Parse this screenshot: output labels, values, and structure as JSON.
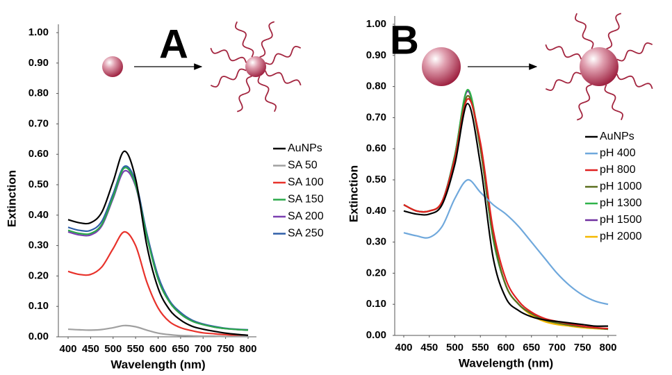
{
  "chart_data": [
    {
      "type": "line",
      "panel_label": "A",
      "xlabel": "Wavelength (nm)",
      "ylabel": "Extinction",
      "grid": false,
      "x": [
        400,
        425,
        450,
        475,
        500,
        525,
        550,
        575,
        600,
        625,
        650,
        675,
        700,
        725,
        750,
        775,
        800
      ],
      "xlim": [
        400,
        800
      ],
      "xticks": [
        400,
        450,
        500,
        550,
        600,
        650,
        700,
        750,
        800
      ],
      "ylim": [
        0,
        1
      ],
      "yticks": [
        {
          "value": 0,
          "label": "0.00"
        },
        {
          "value": 0.1,
          "label": "0.10"
        },
        {
          "value": 0.2,
          "label": "0.20"
        },
        {
          "value": 0.3,
          "label": "0.30"
        },
        {
          "value": 0.4,
          "label": "0.40"
        },
        {
          "value": 0.5,
          "label": "0.50"
        },
        {
          "value": 0.6,
          "label": "0.60"
        },
        {
          "value": 0.7,
          "label": "0.70"
        },
        {
          "value": 0.8,
          "label": "0.80"
        },
        {
          "value": 0.9,
          "label": "0.90"
        },
        {
          "value": 1,
          "label": "1.00"
        }
      ],
      "series": [
        {
          "name": "AuNPs",
          "color": "#000000",
          "values": [
            0.385,
            0.375,
            0.375,
            0.41,
            0.51,
            0.61,
            0.52,
            0.3,
            0.16,
            0.09,
            0.055,
            0.035,
            0.025,
            0.018,
            0.012,
            0.008,
            0.005
          ]
        },
        {
          "name": "SA 50",
          "color": "#a0a0a0",
          "values": [
            0.025,
            0.023,
            0.022,
            0.024,
            0.03,
            0.037,
            0.033,
            0.022,
            0.012,
            0.007,
            0.004,
            0.003,
            0.002,
            0.002,
            0.001,
            0.001,
            0.001
          ]
        },
        {
          "name": "SA 100",
          "color": "#e8322b",
          "values": [
            0.215,
            0.205,
            0.205,
            0.23,
            0.29,
            0.345,
            0.3,
            0.18,
            0.095,
            0.05,
            0.03,
            0.02,
            0.013,
            0.01,
            0.007,
            0.005,
            0.004
          ]
        },
        {
          "name": "SA 150",
          "color": "#2aa84a",
          "values": [
            0.35,
            0.34,
            0.34,
            0.37,
            0.46,
            0.555,
            0.5,
            0.33,
            0.19,
            0.115,
            0.075,
            0.052,
            0.04,
            0.032,
            0.027,
            0.024,
            0.022
          ]
        },
        {
          "name": "SA 200",
          "color": "#7a3fb0",
          "values": [
            0.345,
            0.335,
            0.335,
            0.365,
            0.455,
            0.545,
            0.495,
            0.33,
            0.19,
            0.115,
            0.075,
            0.052,
            0.04,
            0.032,
            0.027,
            0.024,
            0.022
          ]
        },
        {
          "name": "SA 250",
          "color": "#2f5fa8",
          "values": [
            0.36,
            0.35,
            0.35,
            0.38,
            0.47,
            0.56,
            0.51,
            0.34,
            0.2,
            0.12,
            0.08,
            0.055,
            0.042,
            0.034,
            0.028,
            0.025,
            0.023
          ]
        }
      ]
    },
    {
      "type": "line",
      "panel_label": "B",
      "xlabel": "Wavelength (nm)",
      "ylabel": "Extinction",
      "grid": false,
      "x": [
        400,
        425,
        450,
        475,
        500,
        525,
        550,
        575,
        600,
        625,
        650,
        675,
        700,
        725,
        750,
        775,
        800
      ],
      "xlim": [
        400,
        800
      ],
      "xticks": [
        400,
        450,
        500,
        550,
        600,
        650,
        700,
        750,
        800
      ],
      "ylim": [
        0,
        1
      ],
      "yticks": [
        {
          "value": 0,
          "label": "0.00"
        },
        {
          "value": 0.1,
          "label": "0.10"
        },
        {
          "value": 0.2,
          "label": "0.20"
        },
        {
          "value": 0.3,
          "label": "0.30"
        },
        {
          "value": 0.4,
          "label": "0.40"
        },
        {
          "value": 0.5,
          "label": "0.50"
        },
        {
          "value": 0.6,
          "label": "0.60"
        },
        {
          "value": 0.7,
          "label": "0.70"
        },
        {
          "value": 0.8,
          "label": "0.80"
        },
        {
          "value": 0.9,
          "label": "0.90"
        },
        {
          "value": 1,
          "label": "1.00"
        }
      ],
      "series": [
        {
          "name": "AuNPs",
          "color": "#000000",
          "values": [
            0.4,
            0.39,
            0.39,
            0.42,
            0.55,
            0.745,
            0.55,
            0.25,
            0.12,
            0.08,
            0.06,
            0.05,
            0.045,
            0.04,
            0.035,
            0.03,
            0.03
          ]
        },
        {
          "name": "pH 400",
          "color": "#6fa8dc",
          "values": [
            0.33,
            0.32,
            0.315,
            0.35,
            0.44,
            0.5,
            0.46,
            0.42,
            0.39,
            0.35,
            0.3,
            0.25,
            0.2,
            0.16,
            0.13,
            0.11,
            0.1
          ]
        },
        {
          "name": "pH 800",
          "color": "#e02020",
          "values": [
            0.42,
            0.4,
            0.4,
            0.43,
            0.57,
            0.76,
            0.62,
            0.34,
            0.18,
            0.11,
            0.075,
            0.055,
            0.045,
            0.037,
            0.03,
            0.025,
            0.022
          ]
        },
        {
          "name": "pH 1000",
          "color": "#5a6e1e",
          "values": [
            0.42,
            0.4,
            0.4,
            0.43,
            0.57,
            0.77,
            0.6,
            0.32,
            0.16,
            0.1,
            0.07,
            0.05,
            0.04,
            0.033,
            0.028,
            0.024,
            0.02
          ]
        },
        {
          "name": "pH 1300",
          "color": "#2fb34a",
          "values": [
            0.42,
            0.4,
            0.4,
            0.43,
            0.58,
            0.79,
            0.6,
            0.31,
            0.16,
            0.1,
            0.07,
            0.05,
            0.04,
            0.033,
            0.028,
            0.024,
            0.02
          ]
        },
        {
          "name": "pH 1500",
          "color": "#7030a0",
          "values": [
            0.42,
            0.4,
            0.4,
            0.43,
            0.58,
            0.785,
            0.6,
            0.31,
            0.16,
            0.1,
            0.07,
            0.05,
            0.04,
            0.033,
            0.028,
            0.024,
            0.02
          ]
        },
        {
          "name": "pH 2000",
          "color": "#f5b800",
          "values": [
            0.42,
            0.4,
            0.4,
            0.43,
            0.57,
            0.77,
            0.61,
            0.32,
            0.16,
            0.1,
            0.065,
            0.045,
            0.035,
            0.03,
            0.025,
            0.022,
            0.02
          ]
        }
      ]
    }
  ]
}
